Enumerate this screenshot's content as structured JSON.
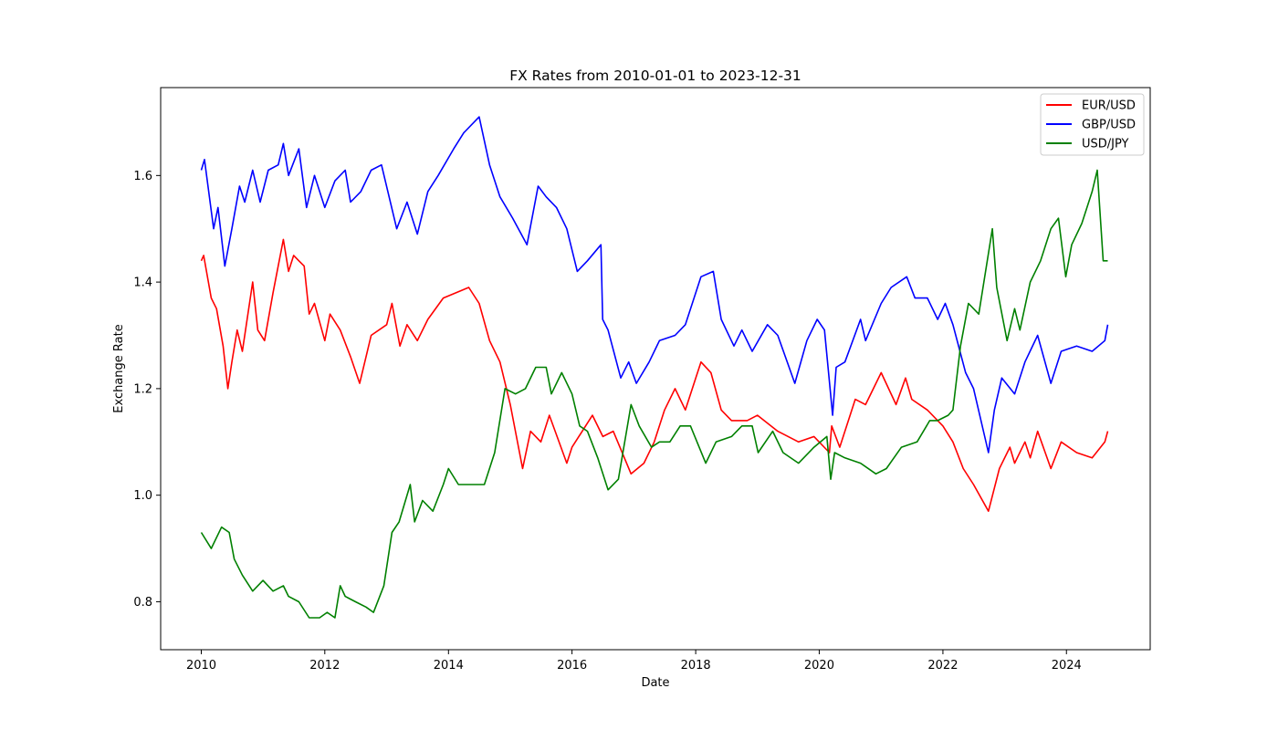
{
  "chart_data": {
    "type": "line",
    "title": "FX Rates from 2010-01-01 to 2023-12-31",
    "xlabel": "Date",
    "ylabel": "Exchange Rate",
    "xlim": [
      "2009-05-06",
      "2025-05-10"
    ],
    "ylim": [
      0.71,
      1.765
    ],
    "x_ticks": [
      "2010",
      "2012",
      "2014",
      "2016",
      "2018",
      "2020",
      "2022",
      "2024"
    ],
    "y_ticks": [
      "0.8",
      "1.0",
      "1.2",
      "1.4",
      "1.6"
    ],
    "grid": false,
    "legend_position": "top-right",
    "series": [
      {
        "name": "EUR/USD",
        "color": "#ff0000",
        "points": [
          [
            "2010-01-01",
            1.44
          ],
          [
            "2010-01-15",
            1.45
          ],
          [
            "2010-03-01",
            1.37
          ],
          [
            "2010-04-01",
            1.35
          ],
          [
            "2010-05-10",
            1.28
          ],
          [
            "2010-06-07",
            1.2
          ],
          [
            "2010-07-01",
            1.25
          ],
          [
            "2010-08-01",
            1.31
          ],
          [
            "2010-09-01",
            1.27
          ],
          [
            "2010-11-01",
            1.4
          ],
          [
            "2010-12-01",
            1.31
          ],
          [
            "2011-01-10",
            1.29
          ],
          [
            "2011-03-01",
            1.38
          ],
          [
            "2011-05-01",
            1.48
          ],
          [
            "2011-06-01",
            1.42
          ],
          [
            "2011-07-01",
            1.45
          ],
          [
            "2011-08-01",
            1.44
          ],
          [
            "2011-09-01",
            1.43
          ],
          [
            "2011-10-01",
            1.34
          ],
          [
            "2011-11-01",
            1.36
          ],
          [
            "2012-01-01",
            1.29
          ],
          [
            "2012-02-01",
            1.34
          ],
          [
            "2012-04-01",
            1.31
          ],
          [
            "2012-06-01",
            1.26
          ],
          [
            "2012-07-25",
            1.21
          ],
          [
            "2012-09-01",
            1.26
          ],
          [
            "2012-10-01",
            1.3
          ],
          [
            "2013-01-01",
            1.32
          ],
          [
            "2013-02-01",
            1.36
          ],
          [
            "2013-03-20",
            1.28
          ],
          [
            "2013-05-01",
            1.32
          ],
          [
            "2013-07-01",
            1.29
          ],
          [
            "2013-09-01",
            1.33
          ],
          [
            "2013-12-01",
            1.37
          ],
          [
            "2014-05-01",
            1.39
          ],
          [
            "2014-07-01",
            1.36
          ],
          [
            "2014-09-01",
            1.29
          ],
          [
            "2014-11-01",
            1.25
          ],
          [
            "2015-01-01",
            1.17
          ],
          [
            "2015-03-15",
            1.05
          ],
          [
            "2015-05-01",
            1.12
          ],
          [
            "2015-07-01",
            1.1
          ],
          [
            "2015-08-20",
            1.15
          ],
          [
            "2015-12-01",
            1.06
          ],
          [
            "2016-01-01",
            1.09
          ],
          [
            "2016-05-01",
            1.15
          ],
          [
            "2016-07-01",
            1.11
          ],
          [
            "2016-09-01",
            1.12
          ],
          [
            "2016-12-15",
            1.04
          ],
          [
            "2017-03-01",
            1.06
          ],
          [
            "2017-05-01",
            1.1
          ],
          [
            "2017-07-01",
            1.16
          ],
          [
            "2017-09-01",
            1.2
          ],
          [
            "2017-11-01",
            1.16
          ],
          [
            "2018-02-01",
            1.25
          ],
          [
            "2018-04-01",
            1.23
          ],
          [
            "2018-06-01",
            1.16
          ],
          [
            "2018-08-01",
            1.14
          ],
          [
            "2018-11-01",
            1.14
          ],
          [
            "2019-01-01",
            1.15
          ],
          [
            "2019-05-01",
            1.12
          ],
          [
            "2019-09-01",
            1.1
          ],
          [
            "2019-12-01",
            1.11
          ],
          [
            "2020-03-01",
            1.08
          ],
          [
            "2020-03-15",
            1.13
          ],
          [
            "2020-05-01",
            1.09
          ],
          [
            "2020-08-01",
            1.18
          ],
          [
            "2020-10-01",
            1.17
          ],
          [
            "2021-01-01",
            1.23
          ],
          [
            "2021-03-30",
            1.17
          ],
          [
            "2021-05-25",
            1.22
          ],
          [
            "2021-07-01",
            1.18
          ],
          [
            "2021-10-01",
            1.16
          ],
          [
            "2022-01-01",
            1.13
          ],
          [
            "2022-03-01",
            1.1
          ],
          [
            "2022-05-01",
            1.05
          ],
          [
            "2022-07-01",
            1.02
          ],
          [
            "2022-09-27",
            0.97
          ],
          [
            "2022-12-01",
            1.05
          ],
          [
            "2023-02-01",
            1.09
          ],
          [
            "2023-03-01",
            1.06
          ],
          [
            "2023-05-01",
            1.1
          ],
          [
            "2023-06-01",
            1.07
          ],
          [
            "2023-07-15",
            1.12
          ],
          [
            "2023-10-01",
            1.05
          ],
          [
            "2023-12-01",
            1.1
          ],
          [
            "2024-03-01",
            1.08
          ],
          [
            "2024-06-01",
            1.07
          ],
          [
            "2024-08-15",
            1.1
          ],
          [
            "2024-09-01",
            1.12
          ]
        ]
      },
      {
        "name": "GBP/USD",
        "color": "#0000ff",
        "points": [
          [
            "2010-01-01",
            1.61
          ],
          [
            "2010-01-20",
            1.63
          ],
          [
            "2010-03-15",
            1.5
          ],
          [
            "2010-04-10",
            1.54
          ],
          [
            "2010-05-20",
            1.43
          ],
          [
            "2010-07-01",
            1.5
          ],
          [
            "2010-08-15",
            1.58
          ],
          [
            "2010-09-15",
            1.55
          ],
          [
            "2010-11-01",
            1.61
          ],
          [
            "2010-12-15",
            1.55
          ],
          [
            "2011-02-01",
            1.61
          ],
          [
            "2011-04-01",
            1.62
          ],
          [
            "2011-05-01",
            1.66
          ],
          [
            "2011-06-01",
            1.6
          ],
          [
            "2011-08-01",
            1.65
          ],
          [
            "2011-09-15",
            1.54
          ],
          [
            "2011-11-01",
            1.6
          ],
          [
            "2012-01-01",
            1.54
          ],
          [
            "2012-03-01",
            1.59
          ],
          [
            "2012-05-01",
            1.61
          ],
          [
            "2012-06-01",
            1.55
          ],
          [
            "2012-08-01",
            1.57
          ],
          [
            "2012-10-01",
            1.61
          ],
          [
            "2012-12-01",
            1.62
          ],
          [
            "2013-03-01",
            1.5
          ],
          [
            "2013-05-01",
            1.55
          ],
          [
            "2013-07-01",
            1.49
          ],
          [
            "2013-09-01",
            1.57
          ],
          [
            "2013-11-01",
            1.6
          ],
          [
            "2014-02-01",
            1.65
          ],
          [
            "2014-04-01",
            1.68
          ],
          [
            "2014-07-01",
            1.71
          ],
          [
            "2014-09-01",
            1.62
          ],
          [
            "2014-11-01",
            1.56
          ],
          [
            "2015-01-15",
            1.52
          ],
          [
            "2015-04-10",
            1.47
          ],
          [
            "2015-06-15",
            1.58
          ],
          [
            "2015-08-01",
            1.56
          ],
          [
            "2015-10-01",
            1.54
          ],
          [
            "2015-12-01",
            1.5
          ],
          [
            "2016-02-01",
            1.42
          ],
          [
            "2016-04-01",
            1.44
          ],
          [
            "2016-06-20",
            1.47
          ],
          [
            "2016-06-30",
            1.33
          ],
          [
            "2016-08-01",
            1.31
          ],
          [
            "2016-10-15",
            1.22
          ],
          [
            "2016-12-01",
            1.25
          ],
          [
            "2017-01-15",
            1.21
          ],
          [
            "2017-04-01",
            1.25
          ],
          [
            "2017-06-01",
            1.29
          ],
          [
            "2017-09-01",
            1.3
          ],
          [
            "2017-11-01",
            1.32
          ],
          [
            "2018-02-01",
            1.41
          ],
          [
            "2018-04-15",
            1.42
          ],
          [
            "2018-06-01",
            1.33
          ],
          [
            "2018-08-15",
            1.28
          ],
          [
            "2018-10-01",
            1.31
          ],
          [
            "2018-12-01",
            1.27
          ],
          [
            "2019-03-01",
            1.32
          ],
          [
            "2019-05-01",
            1.3
          ],
          [
            "2019-08-10",
            1.21
          ],
          [
            "2019-10-20",
            1.29
          ],
          [
            "2019-12-20",
            1.33
          ],
          [
            "2020-02-01",
            1.31
          ],
          [
            "2020-03-20",
            1.15
          ],
          [
            "2020-04-10",
            1.24
          ],
          [
            "2020-06-01",
            1.25
          ],
          [
            "2020-09-01",
            1.33
          ],
          [
            "2020-10-01",
            1.29
          ],
          [
            "2021-01-01",
            1.36
          ],
          [
            "2021-03-01",
            1.39
          ],
          [
            "2021-06-01",
            1.41
          ],
          [
            "2021-07-20",
            1.37
          ],
          [
            "2021-10-01",
            1.37
          ],
          [
            "2021-12-01",
            1.33
          ],
          [
            "2022-01-15",
            1.36
          ],
          [
            "2022-03-01",
            1.32
          ],
          [
            "2022-05-15",
            1.23
          ],
          [
            "2022-07-01",
            1.2
          ],
          [
            "2022-09-27",
            1.08
          ],
          [
            "2022-11-01",
            1.16
          ],
          [
            "2022-12-15",
            1.22
          ],
          [
            "2023-03-01",
            1.19
          ],
          [
            "2023-05-01",
            1.25
          ],
          [
            "2023-07-15",
            1.3
          ],
          [
            "2023-10-01",
            1.21
          ],
          [
            "2023-12-01",
            1.27
          ],
          [
            "2024-03-01",
            1.28
          ],
          [
            "2024-06-01",
            1.27
          ],
          [
            "2024-08-15",
            1.29
          ],
          [
            "2024-09-01",
            1.32
          ]
        ]
      },
      {
        "name": "USD/JPY",
        "color": "#008000",
        "points": [
          [
            "2010-01-01",
            0.93
          ],
          [
            "2010-03-01",
            0.9
          ],
          [
            "2010-05-01",
            0.94
          ],
          [
            "2010-06-15",
            0.93
          ],
          [
            "2010-07-15",
            0.88
          ],
          [
            "2010-09-01",
            0.85
          ],
          [
            "2010-11-01",
            0.82
          ],
          [
            "2011-01-01",
            0.84
          ],
          [
            "2011-03-01",
            0.82
          ],
          [
            "2011-05-01",
            0.83
          ],
          [
            "2011-06-01",
            0.81
          ],
          [
            "2011-08-01",
            0.8
          ],
          [
            "2011-10-01",
            0.77
          ],
          [
            "2011-12-01",
            0.77
          ],
          [
            "2012-01-15",
            0.78
          ],
          [
            "2012-03-01",
            0.77
          ],
          [
            "2012-04-01",
            0.83
          ],
          [
            "2012-05-01",
            0.81
          ],
          [
            "2012-07-01",
            0.8
          ],
          [
            "2012-09-01",
            0.79
          ],
          [
            "2012-10-15",
            0.78
          ],
          [
            "2012-12-15",
            0.83
          ],
          [
            "2013-02-01",
            0.93
          ],
          [
            "2013-03-15",
            0.95
          ],
          [
            "2013-05-20",
            1.02
          ],
          [
            "2013-06-15",
            0.95
          ],
          [
            "2013-08-01",
            0.99
          ],
          [
            "2013-10-01",
            0.97
          ],
          [
            "2013-12-01",
            1.02
          ],
          [
            "2014-01-01",
            1.05
          ],
          [
            "2014-03-01",
            1.02
          ],
          [
            "2014-05-01",
            1.02
          ],
          [
            "2014-08-01",
            1.02
          ],
          [
            "2014-10-01",
            1.08
          ],
          [
            "2014-12-01",
            1.2
          ],
          [
            "2015-02-01",
            1.19
          ],
          [
            "2015-04-01",
            1.2
          ],
          [
            "2015-06-01",
            1.24
          ],
          [
            "2015-08-01",
            1.24
          ],
          [
            "2015-09-01",
            1.19
          ],
          [
            "2015-11-01",
            1.23
          ],
          [
            "2016-01-01",
            1.19
          ],
          [
            "2016-02-15",
            1.13
          ],
          [
            "2016-04-01",
            1.12
          ],
          [
            "2016-06-01",
            1.07
          ],
          [
            "2016-08-01",
            1.01
          ],
          [
            "2016-10-01",
            1.03
          ],
          [
            "2016-12-15",
            1.17
          ],
          [
            "2017-02-01",
            1.13
          ],
          [
            "2017-04-15",
            1.09
          ],
          [
            "2017-06-01",
            1.1
          ],
          [
            "2017-08-01",
            1.1
          ],
          [
            "2017-10-01",
            1.13
          ],
          [
            "2017-12-01",
            1.13
          ],
          [
            "2018-03-01",
            1.06
          ],
          [
            "2018-05-01",
            1.1
          ],
          [
            "2018-08-01",
            1.11
          ],
          [
            "2018-10-01",
            1.13
          ],
          [
            "2018-12-01",
            1.13
          ],
          [
            "2019-01-05",
            1.08
          ],
          [
            "2019-04-01",
            1.12
          ],
          [
            "2019-06-01",
            1.08
          ],
          [
            "2019-09-01",
            1.06
          ],
          [
            "2019-12-01",
            1.09
          ],
          [
            "2020-02-15",
            1.11
          ],
          [
            "2020-03-09",
            1.03
          ],
          [
            "2020-04-01",
            1.08
          ],
          [
            "2020-06-01",
            1.07
          ],
          [
            "2020-09-01",
            1.06
          ],
          [
            "2020-12-01",
            1.04
          ],
          [
            "2021-02-01",
            1.05
          ],
          [
            "2021-05-01",
            1.09
          ],
          [
            "2021-08-01",
            1.1
          ],
          [
            "2021-10-15",
            1.14
          ],
          [
            "2021-12-01",
            1.14
          ],
          [
            "2022-02-01",
            1.15
          ],
          [
            "2022-03-01",
            1.16
          ],
          [
            "2022-04-15",
            1.28
          ],
          [
            "2022-06-01",
            1.36
          ],
          [
            "2022-08-01",
            1.34
          ],
          [
            "2022-10-20",
            1.5
          ],
          [
            "2022-11-15",
            1.39
          ],
          [
            "2023-01-15",
            1.29
          ],
          [
            "2023-03-01",
            1.35
          ],
          [
            "2023-04-01",
            1.31
          ],
          [
            "2023-06-01",
            1.4
          ],
          [
            "2023-08-01",
            1.44
          ],
          [
            "2023-10-01",
            1.5
          ],
          [
            "2023-11-15",
            1.52
          ],
          [
            "2023-12-28",
            1.41
          ],
          [
            "2024-02-01",
            1.47
          ],
          [
            "2024-04-01",
            1.51
          ],
          [
            "2024-06-01",
            1.57
          ],
          [
            "2024-07-01",
            1.61
          ],
          [
            "2024-08-05",
            1.44
          ],
          [
            "2024-09-01",
            1.44
          ]
        ]
      }
    ]
  }
}
